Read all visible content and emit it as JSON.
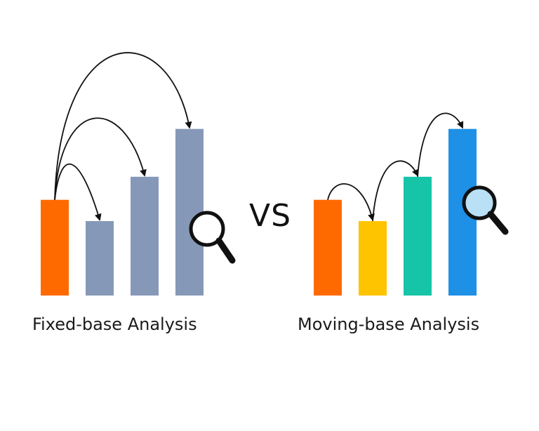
{
  "comparison": {
    "separator_text": "VS",
    "left": {
      "caption": "Fixed-base Analysis",
      "bar_colors": [
        "#ff6a00",
        "#8698b7",
        "#8698b7",
        "#8698b7"
      ],
      "bar_values": [
        2.7,
        2.1,
        3.35,
        4.7
      ],
      "arrow_pattern": "all-from-first-bar",
      "icon": "magnifier-icon"
    },
    "right": {
      "caption": "Moving-base Analysis",
      "bar_colors": [
        "#ff6a00",
        "#ffc400",
        "#16c4a8",
        "#1e90e6"
      ],
      "bar_values": [
        2.7,
        2.1,
        3.35,
        4.7
      ],
      "arrow_pattern": "consecutive-bars",
      "icon": "magnifier-icon"
    }
  }
}
